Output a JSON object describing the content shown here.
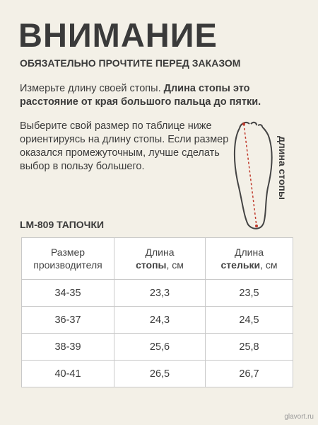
{
  "header": {
    "title": "ВНИМАНИЕ",
    "subtitle": "ОБЯЗАТЕЛЬНО ПРОЧТИТЕ ПЕРЕД ЗАКАЗОМ"
  },
  "intro": {
    "text": "Измерьте длину своей стопы.",
    "bold": "Длина стопы это расстояние от края большого пальца до пятки."
  },
  "advice": "Выберите свой размер по таблице ниже ориентируясь на длину стопы. Если размер оказался промежуточным, лучше сделать выбор в пользу большего.",
  "foot_label": "длина стопы",
  "table": {
    "title": "LM-809 ТАПОЧКИ",
    "columns": [
      {
        "text": "Размер производителя"
      },
      {
        "text": "Длина",
        "bold": "стопы",
        "unit": ", см"
      },
      {
        "text": "Длина",
        "bold": "стельки",
        "unit": ", см"
      }
    ],
    "rows": [
      [
        "34-35",
        "23,3",
        "23,5"
      ],
      [
        "36-37",
        "24,3",
        "24,5"
      ],
      [
        "38-39",
        "25,6",
        "25,8"
      ],
      [
        "40-41",
        "26,5",
        "26,7"
      ]
    ]
  },
  "watermark": "glavort.ru"
}
